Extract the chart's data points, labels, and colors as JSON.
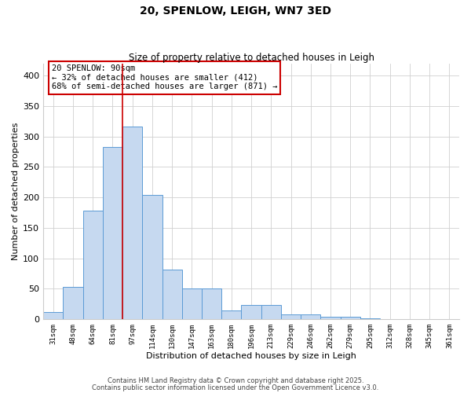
{
  "title": "20, SPENLOW, LEIGH, WN7 3ED",
  "subtitle": "Size of property relative to detached houses in Leigh",
  "xlabel": "Distribution of detached houses by size in Leigh",
  "ylabel": "Number of detached properties",
  "categories": [
    "31sqm",
    "48sqm",
    "64sqm",
    "81sqm",
    "97sqm",
    "114sqm",
    "130sqm",
    "147sqm",
    "163sqm",
    "180sqm",
    "196sqm",
    "213sqm",
    "229sqm",
    "246sqm",
    "262sqm",
    "279sqm",
    "295sqm",
    "312sqm",
    "328sqm",
    "345sqm",
    "361sqm"
  ],
  "values": [
    12,
    53,
    178,
    283,
    317,
    204,
    81,
    50,
    50,
    15,
    23,
    23,
    8,
    8,
    4,
    4,
    2,
    0,
    0,
    0,
    0
  ],
  "bar_color": "#c6d9f0",
  "bar_edge_color": "#5b9bd5",
  "vline_x_index": 3,
  "vline_color": "#cc0000",
  "annotation_line1": "20 SPENLOW: 90sqm",
  "annotation_line2": "← 32% of detached houses are smaller (412)",
  "annotation_line3": "68% of semi-detached houses are larger (871) →",
  "ylim": [
    0,
    420
  ],
  "yticks": [
    0,
    50,
    100,
    150,
    200,
    250,
    300,
    350,
    400
  ],
  "footer1": "Contains HM Land Registry data © Crown copyright and database right 2025.",
  "footer2": "Contains public sector information licensed under the Open Government Licence v3.0.",
  "background_color": "#ffffff",
  "grid_color": "#d0d0d0"
}
